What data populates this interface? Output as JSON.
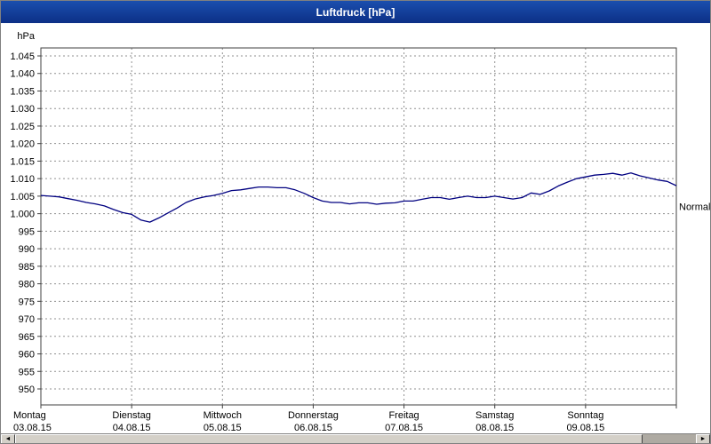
{
  "window": {
    "title": "Luftdruck [hPa]"
  },
  "icons": {
    "scroll_left_arrow": "◄",
    "scroll_right_arrow": "►"
  },
  "colors": {
    "titlebar": "#12409e",
    "line": "#000080",
    "grid": "#909090",
    "frame": "#404040"
  },
  "chart_data": {
    "type": "line",
    "title": "Luftdruck [hPa]",
    "unit_label": "hPa",
    "grid": "dashed",
    "ylim": [
      950,
      1047.5
    ],
    "y_ticks": [
      {
        "value": 1045,
        "label": "1.045"
      },
      {
        "value": 1040,
        "label": "1.040"
      },
      {
        "value": 1035,
        "label": "1.035"
      },
      {
        "value": 1030,
        "label": "1.030"
      },
      {
        "value": 1025,
        "label": "1.025"
      },
      {
        "value": 1020,
        "label": "1.020"
      },
      {
        "value": 1015,
        "label": "1.015"
      },
      {
        "value": 1010,
        "label": "1.010"
      },
      {
        "value": 1005,
        "label": "1.005"
      },
      {
        "value": 1000,
        "label": "1.000"
      },
      {
        "value": 995,
        "label": "995"
      },
      {
        "value": 990,
        "label": "990"
      },
      {
        "value": 985,
        "label": "985"
      },
      {
        "value": 980,
        "label": "980"
      },
      {
        "value": 975,
        "label": "975"
      },
      {
        "value": 970,
        "label": "970"
      },
      {
        "value": 965,
        "label": "965"
      },
      {
        "value": 960,
        "label": "960"
      },
      {
        "value": 955,
        "label": "955"
      },
      {
        "value": 950,
        "label": "950"
      }
    ],
    "x_days": [
      {
        "name": "Montag",
        "date": "03.08.15"
      },
      {
        "name": "Dienstag",
        "date": "04.08.15"
      },
      {
        "name": "Mittwoch",
        "date": "05.08.15"
      },
      {
        "name": "Donnerstag",
        "date": "06.08.15"
      },
      {
        "name": "Freitag",
        "date": "07.08.15"
      },
      {
        "name": "Samstag",
        "date": "08.08.15"
      },
      {
        "name": "Sonntag",
        "date": "09.08.15"
      }
    ],
    "normal_marker": {
      "label": "Normal",
      "value": 1002
    },
    "series": [
      {
        "name": "Luftdruck",
        "color": "#000080",
        "values": [
          1005.2,
          1005.0,
          1004.8,
          1004.3,
          1003.8,
          1003.2,
          1002.8,
          1002.2,
          1001.2,
          1000.3,
          999.8,
          998.2,
          997.6,
          998.8,
          1000.2,
          1001.6,
          1003.2,
          1004.2,
          1004.8,
          1005.2,
          1005.8,
          1006.6,
          1006.8,
          1007.2,
          1007.6,
          1007.6,
          1007.4,
          1007.4,
          1006.8,
          1005.8,
          1004.6,
          1003.6,
          1003.2,
          1003.2,
          1002.8,
          1003.1,
          1003.1,
          1002.7,
          1003.0,
          1003.1,
          1003.6,
          1003.6,
          1004.1,
          1004.6,
          1004.6,
          1004.1,
          1004.6,
          1005.0,
          1004.6,
          1004.6,
          1005.0,
          1004.6,
          1004.2,
          1004.6,
          1005.9,
          1005.5,
          1006.5,
          1007.9,
          1009.0,
          1010.0,
          1010.5,
          1011.0,
          1011.2,
          1011.5,
          1011.0,
          1011.6,
          1010.8,
          1010.2,
          1009.6,
          1009.2,
          1008.0
        ]
      }
    ]
  }
}
